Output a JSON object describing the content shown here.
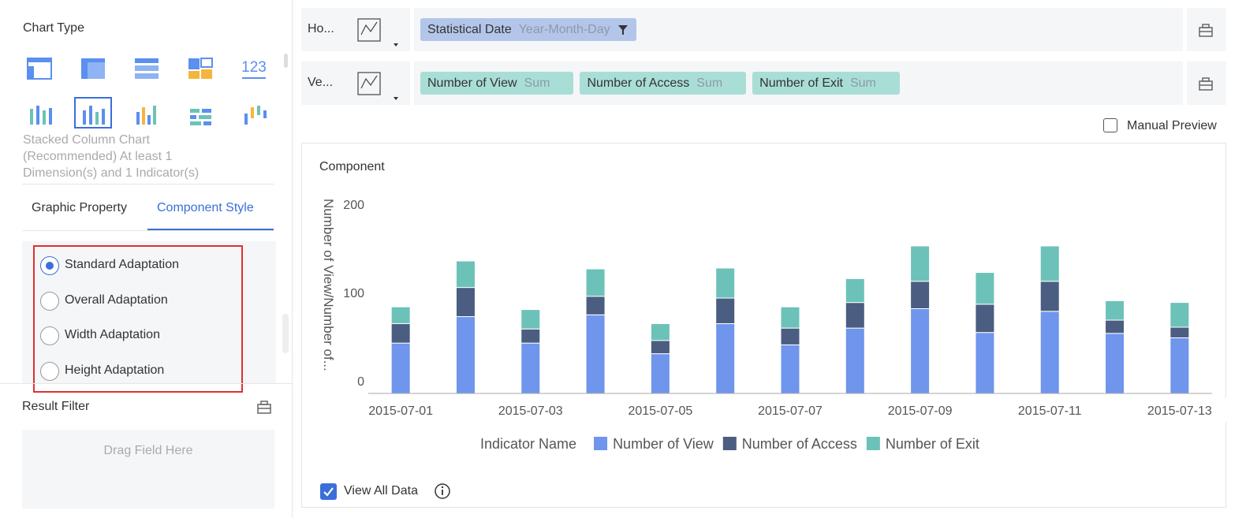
{
  "sidebar": {
    "chart_type_title": "Chart Type",
    "icon_label": "123",
    "description": "Stacked Column Chart (Recommended) At least 1 Dimension(s) and 1 Indicator(s)",
    "tabs": [
      "Graphic Property",
      "Component Style"
    ],
    "options": [
      "Standard Adaptation",
      "Overall Adaptation",
      "Width Adaptation",
      "Height Adaptation"
    ],
    "result_filter": "Result Filter",
    "drop_hint": "Drag Field Here"
  },
  "field_rows": [
    {
      "label": "Ho...",
      "fields": [
        {
          "name": "Statistical Date",
          "aggregation": "Year-Month-Day"
        }
      ]
    },
    {
      "label": "Ve...",
      "fields": [
        {
          "name": "Number of View",
          "aggregation": "Sum"
        },
        {
          "name": "Number of Access",
          "aggregation": "Sum"
        },
        {
          "name": "Number of Exit",
          "aggregation": "Sum"
        }
      ]
    }
  ],
  "manual_preview": "Manual Preview",
  "view_all_data": "View All Data",
  "chart_data": {
    "type": "stacked_bar",
    "title": "Component",
    "ylabel": "Number of View/Number of...",
    "legend_title": "Indicator Name",
    "categories": [
      "2015-07-01",
      null,
      "2015-07-03",
      null,
      "2015-07-05",
      null,
      "2015-07-07",
      null,
      "2015-07-09",
      null,
      "2015-07-11",
      null,
      "2015-07-13"
    ],
    "series": [
      {
        "name": "Number of View",
        "color": "#6f95ec",
        "values": [
          57,
          87,
          57,
          89,
          45,
          79,
          55,
          74,
          96,
          69,
          93,
          68,
          63
        ]
      },
      {
        "name": "Number of Access",
        "color": "#4b5d80",
        "values": [
          22,
          33,
          16,
          21,
          15,
          29,
          19,
          29,
          31,
          32,
          34,
          15,
          12
        ]
      },
      {
        "name": "Number of Exit",
        "color": "#6cc2b8",
        "values": [
          19,
          30,
          22,
          31,
          19,
          34,
          24,
          27,
          40,
          36,
          40,
          22,
          28
        ]
      }
    ],
    "ylim": [
      0,
      200
    ],
    "yticks": [
      0,
      100,
      200
    ],
    "grid": false
  }
}
